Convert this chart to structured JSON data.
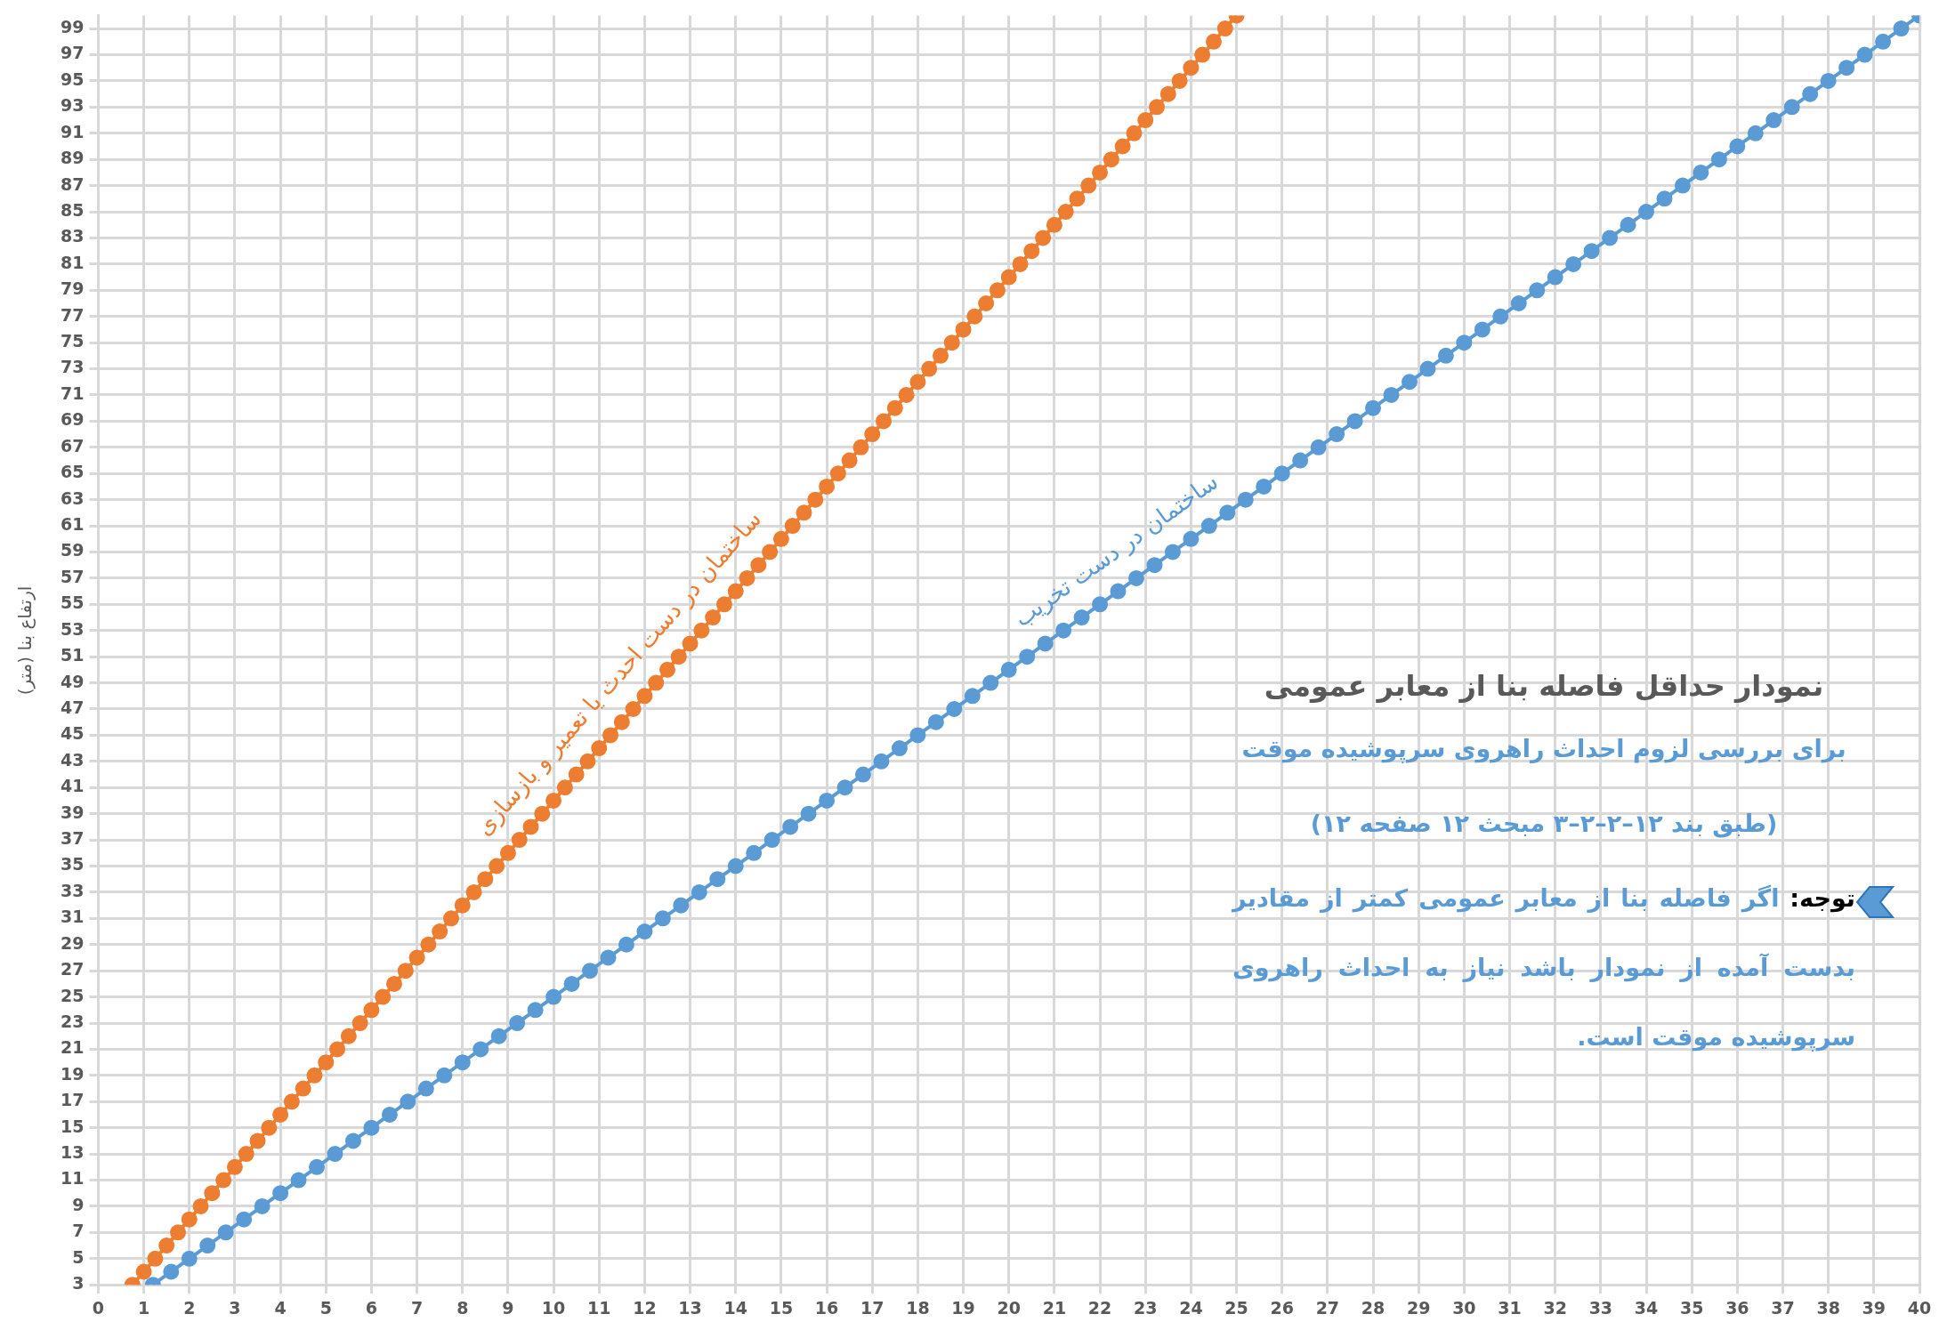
{
  "chart_data": {
    "type": "line",
    "title": "نمودار حداقل فاصله بنا از معابر عمومی",
    "subtitle": "برای بررسی لزوم احداث راهروی سرپوشیده موقت",
    "ylabel": "ارتفاع بنا (متر)",
    "annotations": [
      "(طبق بند ۱۲–۲–۲–۳ مبحث ۱۲ صفحه ۱۲)",
      "توجه: اگر فاصله بنا از معابر عمومی کمتر از مقادیر بدست آمده از نمودار باشد نیاز به احداث راهروی سرپوشیده موقت است."
    ],
    "xlim": [
      0,
      40
    ],
    "xticks": [
      0,
      1,
      2,
      3,
      4,
      5,
      6,
      7,
      8,
      9,
      10,
      11,
      12,
      13,
      14,
      15,
      16,
      17,
      18,
      19,
      20,
      21,
      22,
      23,
      24,
      25,
      26,
      27,
      28,
      29,
      30,
      31,
      32,
      33,
      34,
      35,
      36,
      37,
      38,
      39,
      40
    ],
    "ylim": [
      3,
      100
    ],
    "yticks": [
      3,
      5,
      7,
      9,
      11,
      13,
      15,
      17,
      19,
      21,
      23,
      25,
      27,
      29,
      31,
      33,
      35,
      37,
      39,
      41,
      43,
      45,
      47,
      49,
      51,
      53,
      55,
      57,
      59,
      61,
      63,
      65,
      67,
      69,
      71,
      73,
      75,
      77,
      79,
      81,
      83,
      85,
      87,
      89,
      91,
      93,
      95,
      97,
      99
    ],
    "grid": true,
    "legend": false,
    "marker": "circle",
    "line_style": "solid",
    "series": [
      {
        "name": "ساختمان در دست احدث یا تعمیر و بازسازی",
        "color": "#ed7d31",
        "x": [
          0.75,
          1,
          1.25,
          1.5,
          1.75,
          2,
          2.25,
          2.5,
          2.75,
          3,
          3.25,
          3.5,
          3.75,
          4,
          4.25,
          4.5,
          4.75,
          5,
          5.25,
          5.5,
          5.75,
          6,
          6.25,
          6.5,
          6.75,
          7,
          7.25,
          7.5,
          7.75,
          8,
          8.25,
          8.5,
          8.75,
          9,
          9.25,
          9.5,
          9.75,
          10,
          10.25,
          10.5,
          10.75,
          11,
          11.25,
          11.5,
          11.75,
          12,
          12.25,
          12.5,
          12.75,
          13,
          13.25,
          13.5,
          13.75,
          14,
          14.25,
          14.5,
          14.75,
          15,
          15.25,
          15.5,
          15.75,
          16,
          16.25,
          16.5,
          16.75,
          17,
          17.25,
          17.5,
          17.75,
          18,
          18.25,
          18.5,
          18.75,
          19,
          19.25,
          19.5,
          19.75,
          20,
          20.25,
          20.5,
          20.75,
          21,
          21.25,
          21.5,
          21.75,
          22,
          22.25,
          22.5,
          22.75,
          23,
          23.25,
          23.5,
          23.75,
          24,
          24.25,
          24.5,
          24.75,
          25
        ],
        "values": [
          3,
          4,
          5,
          6,
          7,
          8,
          9,
          10,
          11,
          12,
          13,
          14,
          15,
          16,
          17,
          18,
          19,
          20,
          21,
          22,
          23,
          24,
          25,
          26,
          27,
          28,
          29,
          30,
          31,
          32,
          33,
          34,
          35,
          36,
          37,
          38,
          39,
          40,
          41,
          42,
          43,
          44,
          45,
          46,
          47,
          48,
          49,
          50,
          51,
          52,
          53,
          54,
          55,
          56,
          57,
          58,
          59,
          60,
          61,
          62,
          63,
          64,
          65,
          66,
          67,
          68,
          69,
          70,
          71,
          72,
          73,
          74,
          75,
          76,
          77,
          78,
          79,
          80,
          81,
          82,
          83,
          84,
          85,
          86,
          87,
          88,
          89,
          90,
          91,
          92,
          93,
          94,
          95,
          96,
          97,
          98,
          99,
          100
        ]
      },
      {
        "name": "ساختمان در دست تخریب",
        "color": "#5b9bd5",
        "x": [
          1.2,
          1.6,
          2,
          2.4,
          2.8,
          3.2,
          3.6,
          4,
          4.4,
          4.8,
          5.2,
          5.6,
          6,
          6.4,
          6.8,
          7.2,
          7.6,
          8,
          8.4,
          8.8,
          9.2,
          9.6,
          10,
          10.4,
          10.8,
          11.2,
          11.6,
          12,
          12.4,
          12.8,
          13.2,
          13.6,
          14,
          14.4,
          14.8,
          15.2,
          15.6,
          16,
          16.4,
          16.8,
          17.2,
          17.6,
          18,
          18.4,
          18.8,
          19.2,
          19.6,
          20,
          20.4,
          20.8,
          21.2,
          21.6,
          22,
          22.4,
          22.8,
          23.2,
          23.6,
          24,
          24.4,
          24.8,
          25.2,
          25.6,
          26,
          26.4,
          26.8,
          27.2,
          27.6,
          28,
          28.4,
          28.8,
          29.2,
          29.6,
          30,
          30.4,
          30.8,
          31.2,
          31.6,
          32,
          32.4,
          32.8,
          33.2,
          33.6,
          34,
          34.4,
          34.8,
          35.2,
          35.6,
          36,
          36.4,
          36.8,
          37.2,
          37.6,
          38,
          38.4,
          38.8,
          39.2,
          39.6,
          40
        ],
        "values": [
          3,
          4,
          5,
          6,
          7,
          8,
          9,
          10,
          11,
          12,
          13,
          14,
          15,
          16,
          17,
          18,
          19,
          20,
          21,
          22,
          23,
          24,
          25,
          26,
          27,
          28,
          29,
          30,
          31,
          32,
          33,
          34,
          35,
          36,
          37,
          38,
          39,
          40,
          41,
          42,
          43,
          44,
          45,
          46,
          47,
          48,
          49,
          50,
          51,
          52,
          53,
          54,
          55,
          56,
          57,
          58,
          59,
          60,
          61,
          62,
          63,
          64,
          65,
          66,
          67,
          68,
          69,
          70,
          71,
          72,
          73,
          74,
          75,
          76,
          77,
          78,
          79,
          80,
          81,
          82,
          83,
          84,
          85,
          86,
          87,
          88,
          89,
          90,
          91,
          92,
          93,
          94,
          95,
          96,
          97,
          98,
          99,
          100
        ]
      }
    ]
  }
}
